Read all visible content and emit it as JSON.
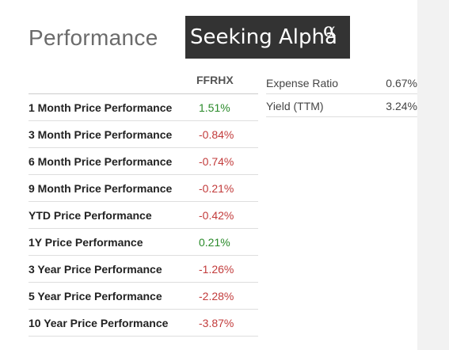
{
  "page": {
    "title": "Performance",
    "logo": {
      "text": "Seeking Alpha",
      "symbol": "α"
    }
  },
  "performance": {
    "column_header": "FFRHX",
    "rows": [
      {
        "label": "1 Month Price Performance",
        "value": "1.51%"
      },
      {
        "label": "3 Month Price Performance",
        "value": "-0.84%"
      },
      {
        "label": "6 Month Price Performance",
        "value": "-0.74%"
      },
      {
        "label": "9 Month Price Performance",
        "value": "-0.21%"
      },
      {
        "label": "YTD Price Performance",
        "value": "-0.42%"
      },
      {
        "label": "1Y Price Performance",
        "value": "0.21%"
      },
      {
        "label": "3 Year Price Performance",
        "value": "-1.26%"
      },
      {
        "label": "5 Year Price Performance",
        "value": "-2.28%"
      },
      {
        "label": "10 Year Price Performance",
        "value": "-3.87%"
      }
    ]
  },
  "stats": [
    {
      "label": "Expense Ratio",
      "value": "0.67%"
    },
    {
      "label": "Yield (TTM)",
      "value": "3.24%"
    }
  ],
  "colors": {
    "positive": "#2a8a2a",
    "negative": "#c23b3b",
    "logo_bg": "#333333"
  }
}
